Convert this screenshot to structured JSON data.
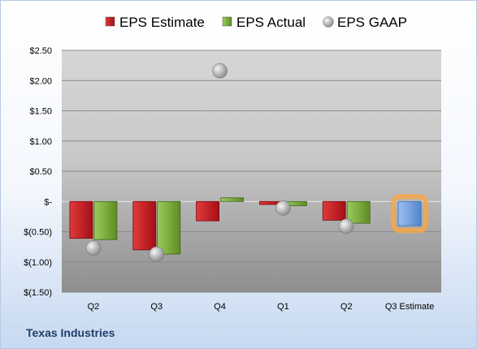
{
  "company": "Texas Industries",
  "chart_data": {
    "type": "bar",
    "categories": [
      "Q2",
      "Q3",
      "Q4",
      "Q1",
      "Q2",
      "Q3 Estimate"
    ],
    "series": [
      {
        "name": "EPS Estimate",
        "values": [
          -0.61,
          -0.8,
          -0.32,
          -0.05,
          -0.31,
          null
        ],
        "color": "#c0141c"
      },
      {
        "name": "EPS Actual",
        "values": [
          -0.63,
          -0.87,
          0.06,
          -0.07,
          -0.36,
          null
        ],
        "color": "#70a030"
      },
      {
        "name": "EPS GAAP",
        "values": [
          -0.77,
          -0.87,
          2.16,
          -0.11,
          -0.41,
          null
        ],
        "color": "#a8a8a8"
      }
    ],
    "estimate": {
      "category": "Q3 Estimate",
      "value": -0.4,
      "color": "#6f9de0"
    },
    "ylim": [
      -1.5,
      2.5
    ],
    "yticks": [
      2.5,
      2.0,
      1.5,
      1.0,
      0.5,
      0,
      -0.5,
      -1.0,
      -1.5
    ],
    "ytick_labels": [
      "$2.50",
      "$2.00",
      "$1.50",
      "$1.00",
      "$0.50",
      "$-",
      "$(0.50)",
      "$(1.00)",
      "$(1.50)"
    ],
    "grid": true,
    "legend": "top"
  }
}
